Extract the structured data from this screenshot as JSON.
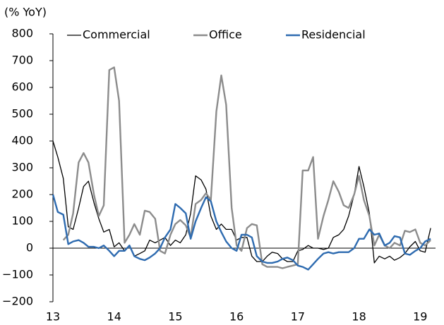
{
  "chart_data": {
    "type": "line",
    "title": "(% YoY)",
    "x": [
      13,
      13.08,
      13.17,
      13.25,
      13.33,
      13.42,
      13.5,
      13.58,
      13.67,
      13.75,
      13.83,
      13.92,
      14,
      14.08,
      14.17,
      14.25,
      14.33,
      14.42,
      14.5,
      14.58,
      14.67,
      14.75,
      14.83,
      14.92,
      15,
      15.08,
      15.17,
      15.25,
      15.33,
      15.42,
      15.5,
      15.58,
      15.67,
      15.75,
      15.83,
      15.92,
      16,
      16.08,
      16.17,
      16.25,
      16.33,
      16.42,
      16.5,
      16.58,
      16.67,
      16.75,
      16.83,
      16.92,
      17,
      17.08,
      17.17,
      17.25,
      17.33,
      17.42,
      17.5,
      17.58,
      17.67,
      17.75,
      17.83,
      17.92,
      18,
      18.08,
      18.17,
      18.25,
      18.33,
      18.42,
      18.5,
      18.58,
      18.67,
      18.75,
      18.83,
      18.92,
      19,
      19.08,
      19.17
    ],
    "series": [
      {
        "name": "Commercial",
        "color": "#000000",
        "values": [
          400,
          340,
          260,
          80,
          70,
          150,
          230,
          250,
          170,
          110,
          60,
          70,
          5,
          20,
          -10,
          10,
          -30,
          -20,
          -10,
          30,
          20,
          30,
          40,
          10,
          30,
          20,
          50,
          130,
          270,
          255,
          220,
          120,
          70,
          90,
          70,
          70,
          30,
          40,
          40,
          -30,
          -50,
          -50,
          -30,
          -15,
          -20,
          -40,
          -50,
          -50,
          -10,
          -5,
          10,
          0,
          0,
          -5,
          0,
          40,
          50,
          70,
          120,
          200,
          305,
          230,
          130,
          -55,
          -30,
          -40,
          -30,
          -45,
          -35,
          -20,
          5,
          25,
          -10,
          -15,
          75
        ]
      },
      {
        "name": "Office",
        "color": "#8c8c8c",
        "values": [
          null,
          null,
          30,
          50,
          130,
          320,
          355,
          320,
          200,
          120,
          160,
          665,
          675,
          550,
          20,
          50,
          90,
          50,
          140,
          135,
          110,
          -10,
          -20,
          50,
          90,
          105,
          85,
          40,
          165,
          180,
          205,
          180,
          510,
          645,
          535,
          150,
          10,
          -10,
          75,
          90,
          85,
          -60,
          -70,
          -70,
          -70,
          -75,
          -70,
          -65,
          -60,
          290,
          290,
          340,
          35,
          120,
          180,
          250,
          210,
          160,
          150,
          200,
          270,
          180,
          120,
          10,
          50,
          10,
          0,
          20,
          10,
          65,
          60,
          70,
          20,
          10,
          30
        ]
      },
      {
        "name": "Residencial",
        "color": "#2e6bb0",
        "values": [
          200,
          135,
          125,
          15,
          25,
          30,
          20,
          5,
          5,
          0,
          10,
          -10,
          -30,
          -10,
          -10,
          10,
          -30,
          -40,
          -45,
          -35,
          -20,
          0,
          40,
          70,
          165,
          150,
          130,
          35,
          100,
          150,
          190,
          175,
          100,
          60,
          25,
          0,
          -10,
          50,
          50,
          40,
          -30,
          -50,
          -55,
          -55,
          -50,
          -40,
          -35,
          -45,
          -65,
          -70,
          -80,
          -60,
          -40,
          -20,
          -15,
          -20,
          -15,
          -15,
          -15,
          0,
          35,
          35,
          70,
          50,
          55,
          10,
          20,
          45,
          40,
          -20,
          -25,
          -10,
          0,
          25,
          35
        ]
      }
    ],
    "xlim": [
      13,
      19.25
    ],
    "xticks": [
      13,
      14,
      15,
      16,
      17,
      18,
      19
    ],
    "ylim": [
      -200,
      800
    ],
    "yticks": [
      {
        "value": -200,
        "label": "−200"
      },
      {
        "value": -100,
        "label": "−100"
      },
      0,
      100,
      200,
      300,
      400,
      500,
      600,
      700,
      800
    ]
  }
}
